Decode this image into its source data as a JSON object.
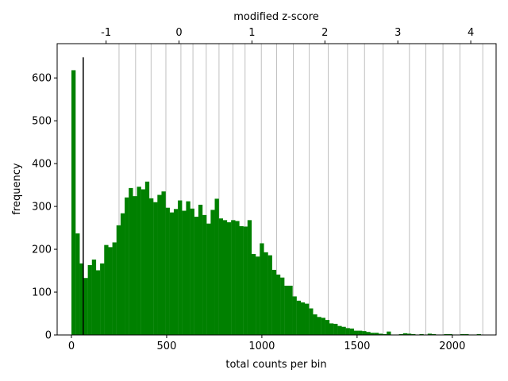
{
  "chart_data": {
    "type": "bar",
    "xlabel": "total counts per bin",
    "ylabel": "frequency",
    "top_xlabel": "modified z-score",
    "xlim": [
      -75,
      2230
    ],
    "ylim": [
      0,
      680
    ],
    "x_ticks": [
      0,
      500,
      1000,
      1500,
      2000
    ],
    "x_tick_labels": [
      "0",
      "500",
      "1000",
      "1500",
      "2000"
    ],
    "y_ticks": [
      0,
      100,
      200,
      300,
      400,
      500,
      600
    ],
    "y_tick_labels": [
      "0",
      "100",
      "200",
      "300",
      "400",
      "500",
      "600"
    ],
    "top_ticks": [
      -1,
      0,
      1,
      2,
      3,
      4
    ],
    "top_tick_labels": [
      "-1",
      "0",
      "1",
      "2",
      "3",
      "4"
    ],
    "top_axis_zero_x": 565,
    "top_axis_unit": 383,
    "bar_color": "#008000",
    "bin_width": 21.5,
    "bin_start": 0,
    "bin_values": [
      618,
      237,
      167,
      133,
      163,
      176,
      151,
      167,
      210,
      205,
      216,
      256,
      284,
      321,
      343,
      324,
      346,
      340,
      358,
      319,
      310,
      327,
      335,
      297,
      286,
      294,
      314,
      290,
      312,
      295,
      276,
      304,
      280,
      260,
      292,
      318,
      272,
      268,
      263,
      268,
      266,
      254,
      253,
      268,
      189,
      183,
      214,
      193,
      186,
      152,
      141,
      134,
      115,
      115,
      90,
      80,
      76,
      73,
      62,
      48,
      42,
      40,
      35,
      27,
      26,
      21,
      19,
      16,
      15,
      10,
      10,
      9,
      7,
      5,
      5,
      3,
      2,
      8,
      1,
      1,
      2,
      4,
      3,
      2,
      1,
      2,
      1,
      3,
      2,
      1,
      1,
      2,
      2,
      1,
      1,
      2,
      2,
      1,
      1,
      2
    ],
    "threshold_line": {
      "x": 62,
      "top": 648
    },
    "grid_lines_x": [
      250,
      337,
      418,
      496,
      575,
      638,
      708,
      775,
      848,
      912,
      997,
      1077,
      1165,
      1249,
      1349,
      1450,
      1539,
      1637,
      1775,
      1861,
      1951,
      2040,
      2160
    ],
    "grid": "vertical only, light gray, at top-axis z-score bin edges"
  }
}
